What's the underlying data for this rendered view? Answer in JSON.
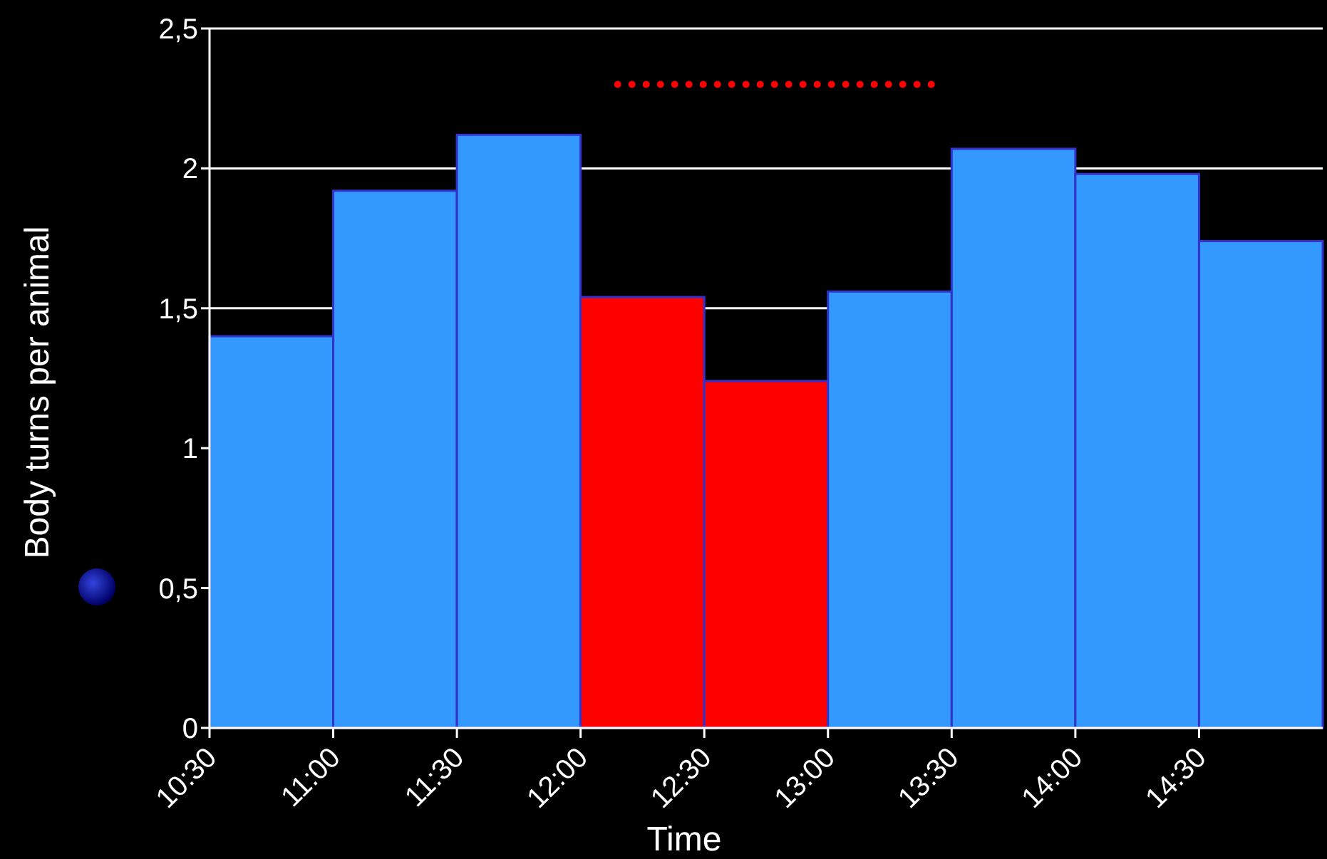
{
  "chart_data": {
    "type": "histogram",
    "xlabel": "Time",
    "ylabel": "Body turns per animal",
    "bins": [
      10.5,
      11,
      11.5,
      12,
      12.5,
      13,
      13.5,
      14,
      14.5,
      15
    ],
    "values": [
      1.4,
      1.92,
      2.12,
      1.54,
      1.24,
      1.56,
      2.07,
      1.98,
      1.74
    ],
    "colors": [
      "#3399ff",
      "#3399ff",
      "#3399ff",
      "#ff0000",
      "#ff0000",
      "#3399ff",
      "#3399ff",
      "#3399ff",
      "#3399ff"
    ],
    "series": [
      {
        "type": "line",
        "x": [
          12.15,
          13.44
        ],
        "values": [
          2.3,
          2.3
        ],
        "color": "#ff0000",
        "line_style": "dotted"
      }
    ],
    "xlim": [
      10.5,
      15
    ],
    "ylim": [
      0,
      2.5
    ],
    "xticks": [
      {
        "value": 10.5,
        "label": "10:30"
      },
      {
        "value": 11,
        "label": "11:00"
      },
      {
        "value": 11.5,
        "label": "11:30"
      },
      {
        "value": 12,
        "label": "12:00"
      },
      {
        "value": 12.5,
        "label": "12:30"
      },
      {
        "value": 13,
        "label": "13:00"
      },
      {
        "value": 13.5,
        "label": "13:30"
      },
      {
        "value": 14,
        "label": "14:00"
      },
      {
        "value": 14.5,
        "label": "14:30"
      }
    ],
    "yticks": [
      0,
      {
        "value": 0.5,
        "label": "0,5"
      },
      1,
      {
        "value": 1.5,
        "label": "1,5"
      },
      2,
      {
        "value": 2.5,
        "label": "2,5"
      }
    ],
    "grid": "y"
  }
}
